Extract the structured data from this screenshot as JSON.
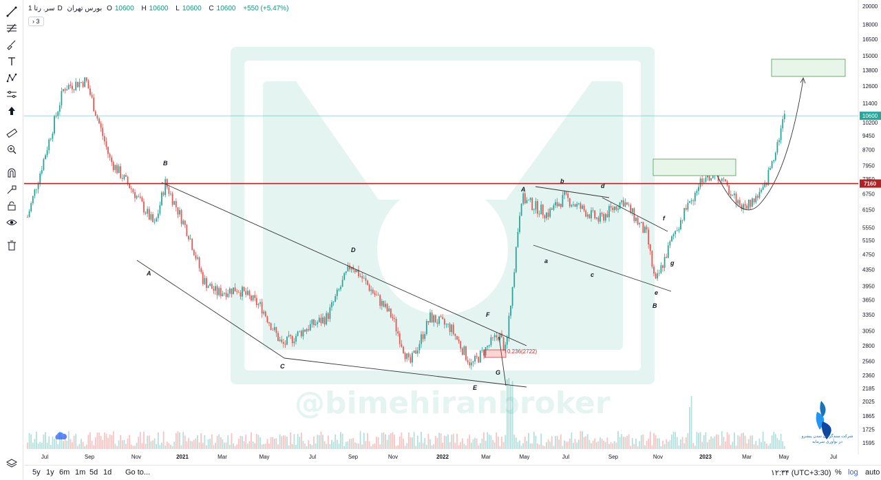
{
  "legend": {
    "symbol": "سر. رتا",
    "interval": "1D",
    "exchange": "بورس تهران",
    "open_label": "O",
    "open": "10600",
    "high_label": "H",
    "high": "10600",
    "low_label": "L",
    "low": "10600",
    "close_label": "C",
    "close": "10600",
    "change": "+550 (+5.47%)",
    "indicator_count": "3"
  },
  "colors": {
    "up": "#26a69a",
    "down": "#ef5350",
    "resistance": "#b22222",
    "last_price": "#26a69a",
    "trendline": "#333333",
    "box_green": "#e8f5e9"
  },
  "toolbar": {
    "tools": [
      "crosshair-icon",
      "trendline-icon",
      "fib-icon",
      "brush-icon",
      "text-icon",
      "pattern-icon",
      "measure-icon",
      "arrow-icon",
      "ruler-icon",
      "zoom-icon",
      "magnet-icon",
      "lock-drawing-icon",
      "lock-icon",
      "eye-icon",
      "trash-icon"
    ],
    "bottom_tool": "layers-icon"
  },
  "bottom_bar": {
    "ranges": [
      "5y",
      "1y",
      "6m",
      "1m",
      "5d",
      "1d"
    ],
    "goto": "Go to...",
    "time": "۱۲:۳۴ (UTC+3:30)",
    "percent": "%",
    "log": "log",
    "auto": "auto"
  },
  "watermark_text": "@bimehiranbroker",
  "brand_text": "شرکت سبدگردان تمدن پیشرو در نوآوری سرمایه",
  "chart_data": {
    "type": "candlestick",
    "title": "",
    "y_scale": "log",
    "y_ticks": [
      1595,
      1725,
      1865,
      2025,
      2185,
      2360,
      2560,
      2800,
      3050,
      3350,
      3650,
      3950,
      4350,
      4750,
      5150,
      5550,
      6150,
      6750,
      7350,
      7950,
      8700,
      9450,
      10200,
      11400,
      12600,
      13800,
      15000,
      16500,
      18000,
      20000
    ],
    "x_ticks": [
      "Jul",
      "Sep",
      "Nov",
      "2021",
      "Mar",
      "May",
      "Jul",
      "Sep",
      "Nov",
      "2022",
      "Mar",
      "May",
      "Jul",
      "Sep",
      "Nov",
      "2023",
      "Mar",
      "May",
      "Jul"
    ],
    "last_price": 10600,
    "resistance_price": 7160,
    "resistance_label": "7160",
    "last_price_label": "10600",
    "fib_label": "0.236(2722)",
    "wave_labels": [
      "A",
      "B",
      "C",
      "D",
      "E",
      "F",
      "G",
      "a",
      "b",
      "c",
      "d",
      "e",
      "f",
      "g",
      "A",
      "B"
    ],
    "price_path_months": [
      "2020-06",
      "2020-07",
      "2020-08",
      "2020-09",
      "2020-10",
      "2020-11",
      "2020-12",
      "2021-01",
      "2021-02",
      "2021-03",
      "2021-04",
      "2021-05",
      "2021-06",
      "2021-07",
      "2021-08",
      "2021-09",
      "2021-10",
      "2021-11",
      "2021-12",
      "2022-01",
      "2022-02",
      "2022-03",
      "2022-04",
      "2022-05",
      "2022-06",
      "2022-07",
      "2022-08",
      "2022-09",
      "2022-10",
      "2022-11",
      "2022-12",
      "2023-01",
      "2023-02",
      "2023-03",
      "2023-04",
      "2023-05"
    ],
    "price_path_values": [
      5900,
      12500,
      13000,
      8200,
      6800,
      5600,
      7200,
      5300,
      4100,
      3800,
      3900,
      3500,
      2800,
      3100,
      3300,
      4500,
      3300,
      2500,
      3300,
      3100,
      2500,
      3000,
      2700,
      6600,
      6000,
      6600,
      5800,
      6500,
      5300,
      4000,
      5400,
      7400,
      7600,
      6200,
      6900,
      10600
    ]
  }
}
